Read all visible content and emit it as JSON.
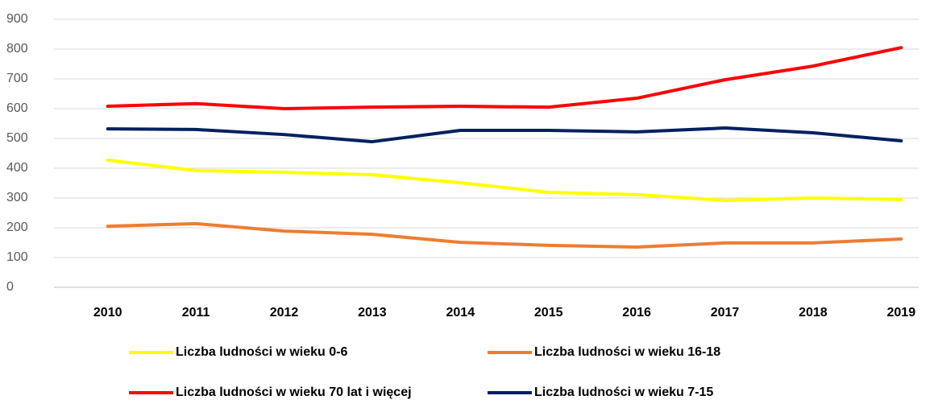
{
  "chart_data": {
    "type": "line",
    "categories": [
      "2010",
      "2011",
      "2012",
      "2013",
      "2014",
      "2015",
      "2016",
      "2017",
      "2018",
      "2019"
    ],
    "series": [
      {
        "name": "Liczba ludności w wieku 0-6",
        "color": "#ffff00",
        "values": [
          427,
          392,
          386,
          378,
          351,
          319,
          311,
          292,
          300,
          295
        ]
      },
      {
        "name": "Liczba ludności w wieku 16-18",
        "color": "#ed7d31",
        "values": [
          205,
          214,
          189,
          178,
          151,
          141,
          135,
          149,
          149,
          162
        ]
      },
      {
        "name": "Liczba ludności w wieku 70 lat i więcej",
        "color": "#ff0000",
        "values": [
          608,
          617,
          600,
          605,
          608,
          605,
          635,
          697,
          743,
          805
        ]
      },
      {
        "name": "Liczba ludności w wieku 7-15",
        "color": "#002060",
        "values": [
          532,
          530,
          513,
          489,
          527,
          527,
          522,
          535,
          519,
          492
        ]
      }
    ],
    "ylim": [
      0,
      900
    ],
    "yticks": [
      0,
      100,
      200,
      300,
      400,
      500,
      600,
      700,
      800,
      900
    ],
    "grid": true
  }
}
